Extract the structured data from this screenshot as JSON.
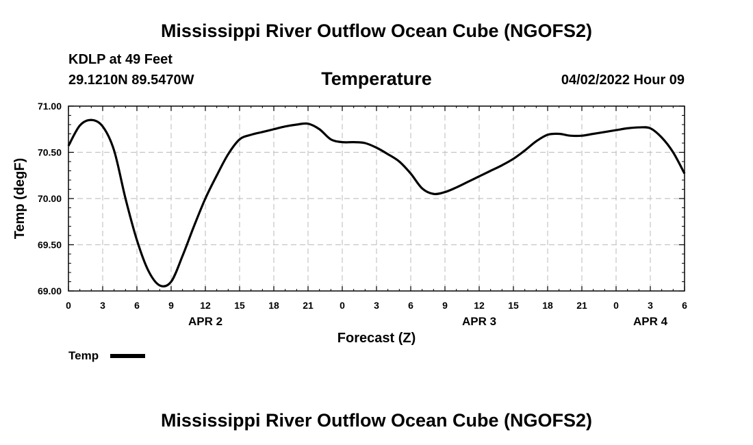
{
  "header": {
    "title": "Mississippi River Outflow Ocean Cube (NGOFS2)",
    "station": "KDLP at 49 Feet",
    "coords": "29.1210N  89.5470W",
    "parameter": "Temperature",
    "run_time": "04/02/2022 Hour 09"
  },
  "footer": {
    "title": "Mississippi River Outflow Ocean Cube (NGOFS2)"
  },
  "chart_data": {
    "type": "line",
    "title": "Temperature",
    "xlabel": "Forecast (Z)",
    "ylabel": "Temp (degF)",
    "xlim": [
      0,
      54
    ],
    "ylim": [
      69.0,
      71.0
    ],
    "yticks": [
      "69.00",
      "69.50",
      "70.00",
      "70.50",
      "71.00"
    ],
    "xtick_labels": [
      "0",
      "3",
      "6",
      "9",
      "12",
      "15",
      "18",
      "21",
      "0",
      "3",
      "6",
      "9",
      "12",
      "15",
      "18",
      "21",
      "0",
      "3",
      "6"
    ],
    "date_labels": [
      {
        "label": "APR 2",
        "x": 12
      },
      {
        "label": "APR 3",
        "x": 36
      },
      {
        "label": "APR 4",
        "x": 51
      }
    ],
    "grid": true,
    "legend_position": "bottom-left",
    "series": [
      {
        "name": "Temp",
        "color": "#000000",
        "x": [
          0,
          1,
          2,
          3,
          4,
          5,
          6,
          7,
          8,
          9,
          10,
          11,
          12,
          13,
          14,
          15,
          16,
          17,
          18,
          19,
          20,
          21,
          22,
          23,
          24,
          25,
          26,
          27,
          28,
          29,
          30,
          31,
          32,
          33,
          34,
          35,
          36,
          37,
          38,
          39,
          40,
          41,
          42,
          43,
          44,
          45,
          46,
          47,
          48,
          49,
          50,
          51,
          52,
          53,
          54
        ],
        "values": [
          70.57,
          70.79,
          70.85,
          70.78,
          70.52,
          70.0,
          69.55,
          69.22,
          69.06,
          69.1,
          69.38,
          69.7,
          70.0,
          70.25,
          70.48,
          70.64,
          70.69,
          70.72,
          70.75,
          70.78,
          70.8,
          70.81,
          70.75,
          70.64,
          70.61,
          70.61,
          70.6,
          70.55,
          70.48,
          70.4,
          70.27,
          70.11,
          70.05,
          70.07,
          70.12,
          70.18,
          70.24,
          70.3,
          70.36,
          70.43,
          70.52,
          70.62,
          70.69,
          70.7,
          70.68,
          70.68,
          70.7,
          70.72,
          70.74,
          70.76,
          70.77,
          70.76,
          70.66,
          70.5,
          70.27
        ]
      }
    ]
  }
}
